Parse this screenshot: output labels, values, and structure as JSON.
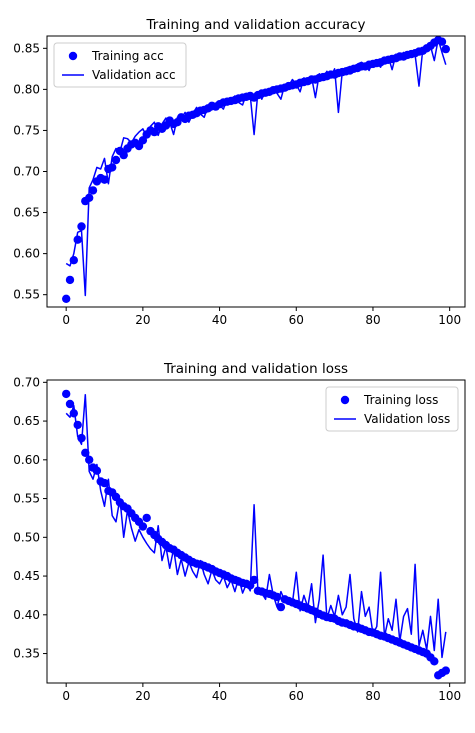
{
  "chart_data": [
    {
      "type": "line",
      "title": "Training and validation accuracy",
      "xlabel": "",
      "ylabel": "",
      "xlim": [
        -5,
        104
      ],
      "ylim": [
        0.535,
        0.865
      ],
      "xticks": [
        0,
        20,
        40,
        60,
        80,
        100
      ],
      "yticks": [
        0.55,
        0.6,
        0.65,
        0.7,
        0.75,
        0.8,
        0.85
      ],
      "ytick_labels": [
        "0.55",
        "0.60",
        "0.65",
        "0.70",
        "0.75",
        "0.80",
        "0.85"
      ],
      "grid": false,
      "legend": "upper left",
      "series": [
        {
          "name": "Training acc",
          "style": "points",
          "color": "#0000ff",
          "x": [
            0,
            1,
            2,
            3,
            4,
            5,
            6,
            7,
            8,
            9,
            10,
            11,
            12,
            13,
            14,
            15,
            16,
            17,
            18,
            19,
            20,
            21,
            22,
            23,
            24,
            25,
            26,
            27,
            28,
            29,
            30,
            31,
            32,
            33,
            34,
            35,
            36,
            37,
            38,
            39,
            40,
            41,
            42,
            43,
            44,
            45,
            46,
            47,
            48,
            49,
            50,
            51,
            52,
            53,
            54,
            55,
            56,
            57,
            58,
            59,
            60,
            61,
            62,
            63,
            64,
            65,
            66,
            67,
            68,
            69,
            70,
            71,
            72,
            73,
            74,
            75,
            76,
            77,
            78,
            79,
            80,
            81,
            82,
            83,
            84,
            85,
            86,
            87,
            88,
            89,
            90,
            91,
            92,
            93,
            94,
            95,
            96,
            97,
            98,
            99
          ],
          "values": [
            0.545,
            0.568,
            0.592,
            0.617,
            0.633,
            0.664,
            0.668,
            0.677,
            0.688,
            0.692,
            0.69,
            0.703,
            0.705,
            0.714,
            0.725,
            0.72,
            0.728,
            0.733,
            0.735,
            0.731,
            0.738,
            0.745,
            0.75,
            0.748,
            0.755,
            0.752,
            0.756,
            0.762,
            0.758,
            0.76,
            0.766,
            0.764,
            0.768,
            0.769,
            0.771,
            0.774,
            0.775,
            0.777,
            0.78,
            0.779,
            0.782,
            0.784,
            0.785,
            0.786,
            0.787,
            0.789,
            0.79,
            0.791,
            0.792,
            0.79,
            0.793,
            0.795,
            0.796,
            0.797,
            0.799,
            0.8,
            0.801,
            0.802,
            0.804,
            0.805,
            0.806,
            0.808,
            0.809,
            0.81,
            0.812,
            0.812,
            0.814,
            0.815,
            0.816,
            0.818,
            0.818,
            0.82,
            0.821,
            0.822,
            0.823,
            0.825,
            0.826,
            0.828,
            0.828,
            0.83,
            0.831,
            0.832,
            0.833,
            0.835,
            0.836,
            0.837,
            0.838,
            0.84,
            0.84,
            0.842,
            0.843,
            0.844,
            0.846,
            0.847,
            0.85,
            0.853,
            0.857,
            0.86,
            0.858,
            0.849
          ]
        },
        {
          "name": "Validation acc",
          "style": "line",
          "color": "#0000ff",
          "x": [
            0,
            1,
            2,
            3,
            4,
            5,
            6,
            7,
            8,
            9,
            10,
            11,
            12,
            13,
            14,
            15,
            16,
            17,
            18,
            19,
            20,
            21,
            22,
            23,
            24,
            25,
            26,
            27,
            28,
            29,
            30,
            31,
            32,
            33,
            34,
            35,
            36,
            37,
            38,
            39,
            40,
            41,
            42,
            43,
            44,
            45,
            46,
            47,
            48,
            49,
            50,
            51,
            52,
            53,
            54,
            55,
            56,
            57,
            58,
            59,
            60,
            61,
            62,
            63,
            64,
            65,
            66,
            67,
            68,
            69,
            70,
            71,
            72,
            73,
            74,
            75,
            76,
            77,
            78,
            79,
            80,
            81,
            82,
            83,
            84,
            85,
            86,
            87,
            88,
            89,
            90,
            91,
            92,
            93,
            94,
            95,
            96,
            97,
            98,
            99
          ],
          "values": [
            0.588,
            0.585,
            0.6,
            0.626,
            0.628,
            0.549,
            0.68,
            0.69,
            0.705,
            0.703,
            0.716,
            0.685,
            0.718,
            0.728,
            0.724,
            0.741,
            0.74,
            0.735,
            0.743,
            0.748,
            0.752,
            0.742,
            0.755,
            0.76,
            0.744,
            0.758,
            0.765,
            0.76,
            0.745,
            0.766,
            0.764,
            0.772,
            0.76,
            0.77,
            0.778,
            0.77,
            0.766,
            0.78,
            0.775,
            0.782,
            0.781,
            0.776,
            0.789,
            0.784,
            0.792,
            0.784,
            0.781,
            0.795,
            0.793,
            0.745,
            0.797,
            0.788,
            0.799,
            0.793,
            0.801,
            0.795,
            0.788,
            0.806,
            0.804,
            0.812,
            0.806,
            0.797,
            0.814,
            0.812,
            0.815,
            0.79,
            0.819,
            0.814,
            0.822,
            0.815,
            0.825,
            0.772,
            0.822,
            0.826,
            0.828,
            0.825,
            0.831,
            0.833,
            0.83,
            0.823,
            0.835,
            0.832,
            0.827,
            0.838,
            0.84,
            0.824,
            0.843,
            0.837,
            0.845,
            0.843,
            0.847,
            0.842,
            0.804,
            0.849,
            0.846,
            0.853,
            0.835,
            0.861,
            0.845,
            0.83
          ]
        }
      ]
    },
    {
      "type": "line",
      "title": "Training and validation loss",
      "xlabel": "",
      "ylabel": "",
      "xlim": [
        -5,
        104
      ],
      "ylim": [
        0.312,
        0.703
      ],
      "xticks": [
        0,
        20,
        40,
        60,
        80,
        100
      ],
      "yticks": [
        0.35,
        0.4,
        0.45,
        0.5,
        0.55,
        0.6,
        0.65,
        0.7
      ],
      "ytick_labels": [
        "0.35",
        "0.40",
        "0.45",
        "0.50",
        "0.55",
        "0.60",
        "0.65",
        "0.70"
      ],
      "grid": false,
      "legend": "upper right",
      "series": [
        {
          "name": "Training loss",
          "style": "points",
          "color": "#0000ff",
          "x": [
            0,
            1,
            2,
            3,
            4,
            5,
            6,
            7,
            8,
            9,
            10,
            11,
            12,
            13,
            14,
            15,
            16,
            17,
            18,
            19,
            20,
            21,
            22,
            23,
            24,
            25,
            26,
            27,
            28,
            29,
            30,
            31,
            32,
            33,
            34,
            35,
            36,
            37,
            38,
            39,
            40,
            41,
            42,
            43,
            44,
            45,
            46,
            47,
            48,
            49,
            50,
            51,
            52,
            53,
            54,
            55,
            56,
            57,
            58,
            59,
            60,
            61,
            62,
            63,
            64,
            65,
            66,
            67,
            68,
            69,
            70,
            71,
            72,
            73,
            74,
            75,
            76,
            77,
            78,
            79,
            80,
            81,
            82,
            83,
            84,
            85,
            86,
            87,
            88,
            89,
            90,
            91,
            92,
            93,
            94,
            95,
            96,
            97,
            98,
            99
          ],
          "values": [
            0.685,
            0.672,
            0.66,
            0.645,
            0.628,
            0.609,
            0.6,
            0.59,
            0.586,
            0.572,
            0.57,
            0.56,
            0.558,
            0.552,
            0.545,
            0.54,
            0.537,
            0.531,
            0.525,
            0.52,
            0.514,
            0.525,
            0.508,
            0.503,
            0.498,
            0.494,
            0.49,
            0.486,
            0.484,
            0.48,
            0.477,
            0.474,
            0.471,
            0.468,
            0.466,
            0.465,
            0.463,
            0.461,
            0.459,
            0.456,
            0.454,
            0.452,
            0.45,
            0.447,
            0.445,
            0.443,
            0.441,
            0.44,
            0.438,
            0.445,
            0.431,
            0.43,
            0.428,
            0.427,
            0.425,
            0.423,
            0.41,
            0.42,
            0.418,
            0.416,
            0.414,
            0.412,
            0.41,
            0.408,
            0.406,
            0.404,
            0.401,
            0.399,
            0.397,
            0.396,
            0.395,
            0.392,
            0.39,
            0.389,
            0.387,
            0.385,
            0.384,
            0.382,
            0.38,
            0.378,
            0.377,
            0.375,
            0.373,
            0.372,
            0.37,
            0.368,
            0.366,
            0.364,
            0.362,
            0.36,
            0.358,
            0.356,
            0.354,
            0.352,
            0.35,
            0.345,
            0.34,
            0.322,
            0.325,
            0.328
          ]
        },
        {
          "name": "Validation loss",
          "style": "line",
          "color": "#0000ff",
          "x": [
            0,
            1,
            2,
            3,
            4,
            5,
            6,
            7,
            8,
            9,
            10,
            11,
            12,
            13,
            14,
            15,
            16,
            17,
            18,
            19,
            20,
            21,
            22,
            23,
            24,
            25,
            26,
            27,
            28,
            29,
            30,
            31,
            32,
            33,
            34,
            35,
            36,
            37,
            38,
            39,
            40,
            41,
            42,
            43,
            44,
            45,
            46,
            47,
            48,
            49,
            50,
            51,
            52,
            53,
            54,
            55,
            56,
            57,
            58,
            59,
            60,
            61,
            62,
            63,
            64,
            65,
            66,
            67,
            68,
            69,
            70,
            71,
            72,
            73,
            74,
            75,
            76,
            77,
            78,
            79,
            80,
            81,
            82,
            83,
            84,
            85,
            86,
            87,
            88,
            89,
            90,
            91,
            92,
            93,
            94,
            95,
            96,
            97,
            98,
            99
          ],
          "values": [
            0.66,
            0.655,
            0.67,
            0.63,
            0.62,
            0.684,
            0.585,
            0.575,
            0.594,
            0.56,
            0.54,
            0.575,
            0.528,
            0.52,
            0.55,
            0.5,
            0.535,
            0.512,
            0.495,
            0.51,
            0.5,
            0.492,
            0.485,
            0.48,
            0.515,
            0.47,
            0.488,
            0.46,
            0.485,
            0.452,
            0.472,
            0.45,
            0.468,
            0.456,
            0.448,
            0.47,
            0.452,
            0.44,
            0.458,
            0.445,
            0.44,
            0.45,
            0.435,
            0.445,
            0.43,
            0.448,
            0.428,
            0.44,
            0.431,
            0.542,
            0.43,
            0.428,
            0.42,
            0.452,
            0.425,
            0.41,
            0.43,
            0.418,
            0.42,
            0.415,
            0.455,
            0.405,
            0.425,
            0.41,
            0.44,
            0.39,
            0.42,
            0.477,
            0.395,
            0.412,
            0.398,
            0.425,
            0.4,
            0.41,
            0.452,
            0.395,
            0.378,
            0.43,
            0.398,
            0.41,
            0.375,
            0.385,
            0.455,
            0.372,
            0.395,
            0.38,
            0.42,
            0.366,
            0.398,
            0.408,
            0.375,
            0.465,
            0.36,
            0.38,
            0.355,
            0.398,
            0.354,
            0.42,
            0.345,
            0.378
          ]
        }
      ]
    }
  ]
}
